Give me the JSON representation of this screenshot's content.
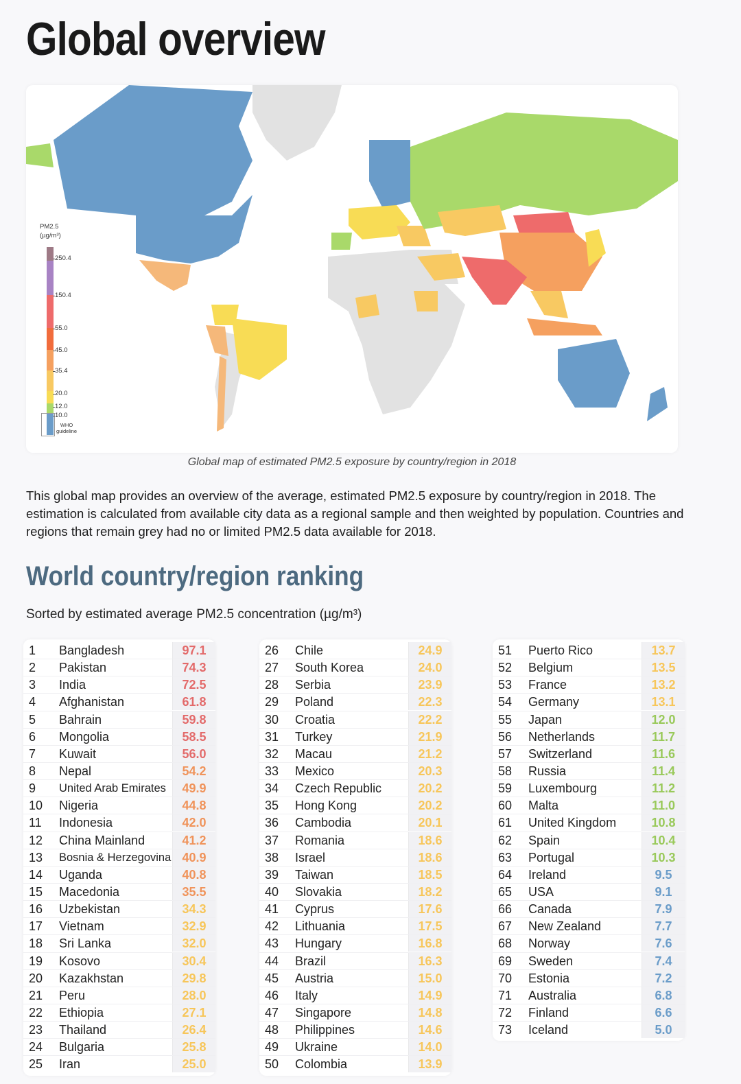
{
  "page_title": "Global overview",
  "map": {
    "caption": "Global map of estimated PM2.5 exposure by country/region in 2018",
    "legend": {
      "title_line1": "PM2.5",
      "title_line2": "(µg/m³)",
      "ticks": [
        "250.4",
        "150.4",
        "55.0",
        "45.0",
        "35.4",
        "20.0",
        "12.0",
        "10.0"
      ],
      "who_label_line1": "WHO",
      "who_label_line2": "guideline",
      "colors": {
        "very_hazardous": "#9e7a86",
        "hazardous": "#a883c4",
        "very_unhealthy": "#ee6b6b",
        "unhealthy": "#f16c3c",
        "unhealthy_sensitive": "#f5a05f",
        "moderate_high": "#f8c962",
        "moderate": "#f8dc55",
        "good_low": "#a9d96a",
        "who": "#6a9cc9",
        "no_data": "#e2e2e2"
      }
    }
  },
  "description": "This global map provides an overview of the average, estimated PM2.5 exposure by country/region in 2018. The estimation is calculated from available city data as a regional sample and then weighted by population. Countries and regions that remain grey had no or limited PM2.5 data available for 2018.",
  "ranking": {
    "title": "World country/region ranking",
    "subtitle": "Sorted by estimated average PM2.5 concentration (µg/m³)",
    "rows": [
      [
        "1",
        "Bangladesh",
        "97.1"
      ],
      [
        "2",
        "Pakistan",
        "74.3"
      ],
      [
        "3",
        "India",
        "72.5"
      ],
      [
        "4",
        "Afghanistan",
        "61.8"
      ],
      [
        "5",
        "Bahrain",
        "59.8"
      ],
      [
        "6",
        "Mongolia",
        "58.5"
      ],
      [
        "7",
        "Kuwait",
        "56.0"
      ],
      [
        "8",
        "Nepal",
        "54.2"
      ],
      [
        "9",
        "United Arab Emirates",
        "49.9"
      ],
      [
        "10",
        "Nigeria",
        "44.8"
      ],
      [
        "11",
        "Indonesia",
        "42.0"
      ],
      [
        "12",
        "China Mainland",
        "41.2"
      ],
      [
        "13",
        "Bosnia & Herzegovina",
        "40.9"
      ],
      [
        "14",
        "Uganda",
        "40.8"
      ],
      [
        "15",
        "Macedonia",
        "35.5"
      ],
      [
        "16",
        "Uzbekistan",
        "34.3"
      ],
      [
        "17",
        "Vietnam",
        "32.9"
      ],
      [
        "18",
        "Sri Lanka",
        "32.0"
      ],
      [
        "19",
        "Kosovo",
        "30.4"
      ],
      [
        "20",
        "Kazakhstan",
        "29.8"
      ],
      [
        "21",
        "Peru",
        "28.0"
      ],
      [
        "22",
        "Ethiopia",
        "27.1"
      ],
      [
        "23",
        "Thailand",
        "26.4"
      ],
      [
        "24",
        "Bulgaria",
        "25.8"
      ],
      [
        "25",
        "Iran",
        "25.0"
      ],
      [
        "26",
        "Chile",
        "24.9"
      ],
      [
        "27",
        "South Korea",
        "24.0"
      ],
      [
        "28",
        "Serbia",
        "23.9"
      ],
      [
        "29",
        "Poland",
        "22.3"
      ],
      [
        "30",
        "Croatia",
        "22.2"
      ],
      [
        "31",
        "Turkey",
        "21.9"
      ],
      [
        "32",
        "Macau",
        "21.2"
      ],
      [
        "33",
        "Mexico",
        "20.3"
      ],
      [
        "34",
        "Czech Republic",
        "20.2"
      ],
      [
        "35",
        "Hong Kong",
        "20.2"
      ],
      [
        "36",
        "Cambodia",
        "20.1"
      ],
      [
        "37",
        "Romania",
        "18.6"
      ],
      [
        "38",
        "Israel",
        "18.6"
      ],
      [
        "39",
        "Taiwan",
        "18.5"
      ],
      [
        "40",
        "Slovakia",
        "18.2"
      ],
      [
        "41",
        "Cyprus",
        "17.6"
      ],
      [
        "42",
        "Lithuania",
        "17.5"
      ],
      [
        "43",
        "Hungary",
        "16.8"
      ],
      [
        "44",
        "Brazil",
        "16.3"
      ],
      [
        "45",
        "Austria",
        "15.0"
      ],
      [
        "46",
        "Italy",
        "14.9"
      ],
      [
        "47",
        "Singapore",
        "14.8"
      ],
      [
        "48",
        "Philippines",
        "14.6"
      ],
      [
        "49",
        "Ukraine",
        "14.0"
      ],
      [
        "50",
        "Colombia",
        "13.9"
      ],
      [
        "51",
        "Puerto Rico",
        "13.7"
      ],
      [
        "52",
        "Belgium",
        "13.5"
      ],
      [
        "53",
        "France",
        "13.2"
      ],
      [
        "54",
        "Germany",
        "13.1"
      ],
      [
        "55",
        "Japan",
        "12.0"
      ],
      [
        "56",
        "Netherlands",
        "11.7"
      ],
      [
        "57",
        "Switzerland",
        "11.6"
      ],
      [
        "58",
        "Russia",
        "11.4"
      ],
      [
        "59",
        "Luxembourg",
        "11.2"
      ],
      [
        "60",
        "Malta",
        "11.0"
      ],
      [
        "61",
        "United Kingdom",
        "10.8"
      ],
      [
        "62",
        "Spain",
        "10.4"
      ],
      [
        "63",
        "Portugal",
        "10.3"
      ],
      [
        "64",
        "Ireland",
        "9.5"
      ],
      [
        "65",
        "USA",
        "9.1"
      ],
      [
        "66",
        "Canada",
        "7.9"
      ],
      [
        "67",
        "New Zealand",
        "7.7"
      ],
      [
        "68",
        "Norway",
        "7.6"
      ],
      [
        "69",
        "Sweden",
        "7.4"
      ],
      [
        "70",
        "Estonia",
        "7.2"
      ],
      [
        "71",
        "Australia",
        "6.8"
      ],
      [
        "72",
        "Finland",
        "6.6"
      ],
      [
        "73",
        "Iceland",
        "5.0"
      ]
    ]
  }
}
